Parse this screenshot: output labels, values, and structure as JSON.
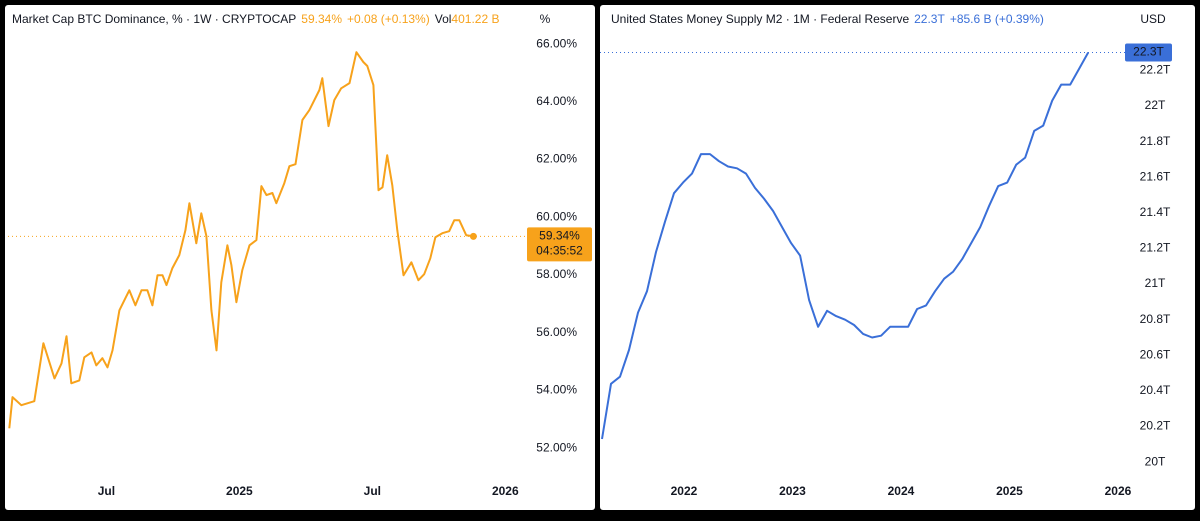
{
  "chart_data": [
    {
      "type": "line",
      "title": "Market Cap BTC Dominance, % · 1W · CRYPTOCAP",
      "price_label": "59.34%",
      "change_label": "+0.08 (+0.13%)",
      "volume_prefix": "Vol",
      "volume_label": "401.22 B",
      "unit": "%",
      "countdown": "04:35:52",
      "color": "#f7a21b",
      "x": [
        2024.135,
        2024.147,
        2024.18,
        2024.229,
        2024.263,
        2024.305,
        2024.331,
        2024.35,
        2024.368,
        2024.398,
        2024.417,
        2024.444,
        2024.462,
        2024.485,
        2024.504,
        2024.523,
        2024.549,
        2024.586,
        2024.609,
        2024.632,
        2024.654,
        2024.673,
        2024.692,
        2024.711,
        2024.726,
        2024.748,
        2024.774,
        2024.797,
        2024.812,
        2024.838,
        2024.857,
        2024.876,
        2024.895,
        2024.914,
        2024.932,
        2024.955,
        2024.97,
        2024.989,
        2025.011,
        2025.038,
        2025.064,
        2025.083,
        2025.102,
        2025.124,
        2025.139,
        2025.169,
        2025.188,
        2025.211,
        2025.237,
        2025.263,
        2025.301,
        2025.312,
        2025.335,
        2025.357,
        2025.383,
        2025.414,
        2025.44,
        2025.466,
        2025.481,
        2025.504,
        2025.523,
        2025.538,
        2025.556,
        2025.575,
        2025.594,
        2025.617,
        2025.647,
        2025.673,
        2025.695,
        2025.718,
        2025.737,
        2025.763,
        2025.789,
        2025.808,
        2025.827,
        2025.853,
        2025.88
      ],
      "values": [
        52.69,
        53.77,
        53.49,
        53.63,
        55.64,
        54.42,
        54.94,
        55.88,
        54.25,
        54.35,
        55.15,
        55.32,
        54.87,
        55.12,
        54.8,
        55.39,
        56.78,
        57.47,
        56.95,
        57.47,
        57.47,
        56.95,
        57.99,
        57.99,
        57.65,
        58.24,
        58.69,
        59.55,
        60.49,
        59.1,
        60.14,
        59.35,
        56.78,
        55.39,
        57.75,
        59.03,
        58.34,
        57.06,
        58.17,
        59.03,
        59.21,
        61.08,
        60.77,
        60.84,
        60.49,
        61.18,
        61.77,
        61.84,
        63.37,
        63.71,
        64.41,
        64.82,
        63.16,
        64.06,
        64.47,
        64.65,
        65.72,
        65.38,
        65.24,
        64.58,
        60.94,
        61.04,
        62.15,
        61.11,
        59.55,
        57.99,
        58.44,
        57.82,
        58.03,
        58.58,
        59.31,
        59.45,
        59.52,
        59.9,
        59.9,
        59.38,
        59.34
      ],
      "xlim": [
        2024.13,
        2026.074
      ],
      "xticks": [
        {
          "value": 2024.5,
          "label": "Jul"
        },
        2025,
        {
          "value": 2025.5,
          "label": "Jul"
        },
        2026
      ],
      "ylim": [
        50.9,
        67.25
      ],
      "yticks": [
        {
          "value": 52,
          "label": "52.00%"
        },
        {
          "value": 54,
          "label": "54.00%"
        },
        {
          "value": 56,
          "label": "56.00%"
        },
        {
          "value": 58,
          "label": "58.00%"
        },
        {
          "value": 60,
          "label": "60.00%"
        },
        {
          "value": 62,
          "label": "62.00%"
        },
        {
          "value": 64,
          "label": "64.00%"
        },
        {
          "value": 66,
          "label": "66.00%"
        }
      ]
    },
    {
      "type": "line",
      "title": "United States Money Supply M2 · 1M · Federal Reserve",
      "price_label": "22.3T",
      "change_label": "+85.6 B (+0.39%)",
      "unit": "USD",
      "color": "#3a6fd8",
      "x": [
        2021.244,
        2021.327,
        2021.41,
        2021.493,
        2021.576,
        2021.659,
        2021.742,
        2021.825,
        2021.908,
        2021.991,
        2022.074,
        2022.157,
        2022.24,
        2022.323,
        2022.406,
        2022.489,
        2022.572,
        2022.655,
        2022.738,
        2022.821,
        2022.904,
        2022.987,
        2023.07,
        2023.153,
        2023.236,
        2023.319,
        2023.402,
        2023.485,
        2023.568,
        2023.651,
        2023.734,
        2023.817,
        2023.9,
        2023.983,
        2024.066,
        2024.149,
        2024.232,
        2024.315,
        2024.398,
        2024.481,
        2024.564,
        2024.647,
        2024.73,
        2024.813,
        2024.896,
        2024.979,
        2025.062,
        2025.145,
        2025.228,
        2025.311,
        2025.394,
        2025.477,
        2025.56,
        2025.643,
        2025.726
      ],
      "values": [
        20.13,
        20.44,
        20.48,
        20.63,
        20.84,
        20.96,
        21.18,
        21.35,
        21.51,
        21.57,
        21.62,
        21.73,
        21.73,
        21.69,
        21.66,
        21.65,
        21.62,
        21.54,
        21.48,
        21.41,
        21.32,
        21.23,
        21.16,
        20.91,
        20.76,
        20.85,
        20.82,
        20.8,
        20.77,
        20.72,
        20.7,
        20.71,
        20.76,
        20.76,
        20.76,
        20.86,
        20.88,
        20.96,
        21.03,
        21.07,
        21.14,
        21.23,
        21.32,
        21.44,
        21.55,
        21.57,
        21.67,
        21.71,
        21.86,
        21.89,
        22.03,
        22.12,
        22.12,
        22.21,
        22.3
      ],
      "xlim": [
        2021.226,
        2026.157
      ],
      "xticks": [
        2022,
        2023,
        2024,
        2025,
        2026
      ],
      "ylim": [
        19.9,
        22.55
      ],
      "yticks": [
        {
          "value": 20,
          "label": "20T"
        },
        {
          "value": 20.2,
          "label": "20.2T"
        },
        {
          "value": 20.4,
          "label": "20.4T"
        },
        {
          "value": 20.6,
          "label": "20.6T"
        },
        {
          "value": 20.8,
          "label": "20.8T"
        },
        {
          "value": 21,
          "label": "21T"
        },
        {
          "value": 21.2,
          "label": "21.2T"
        },
        {
          "value": 21.4,
          "label": "21.4T"
        },
        {
          "value": 21.6,
          "label": "21.6T"
        },
        {
          "value": 21.8,
          "label": "21.8T"
        },
        {
          "value": 22,
          "label": "22T"
        },
        {
          "value": 22.2,
          "label": "22.2T"
        }
      ]
    }
  ]
}
